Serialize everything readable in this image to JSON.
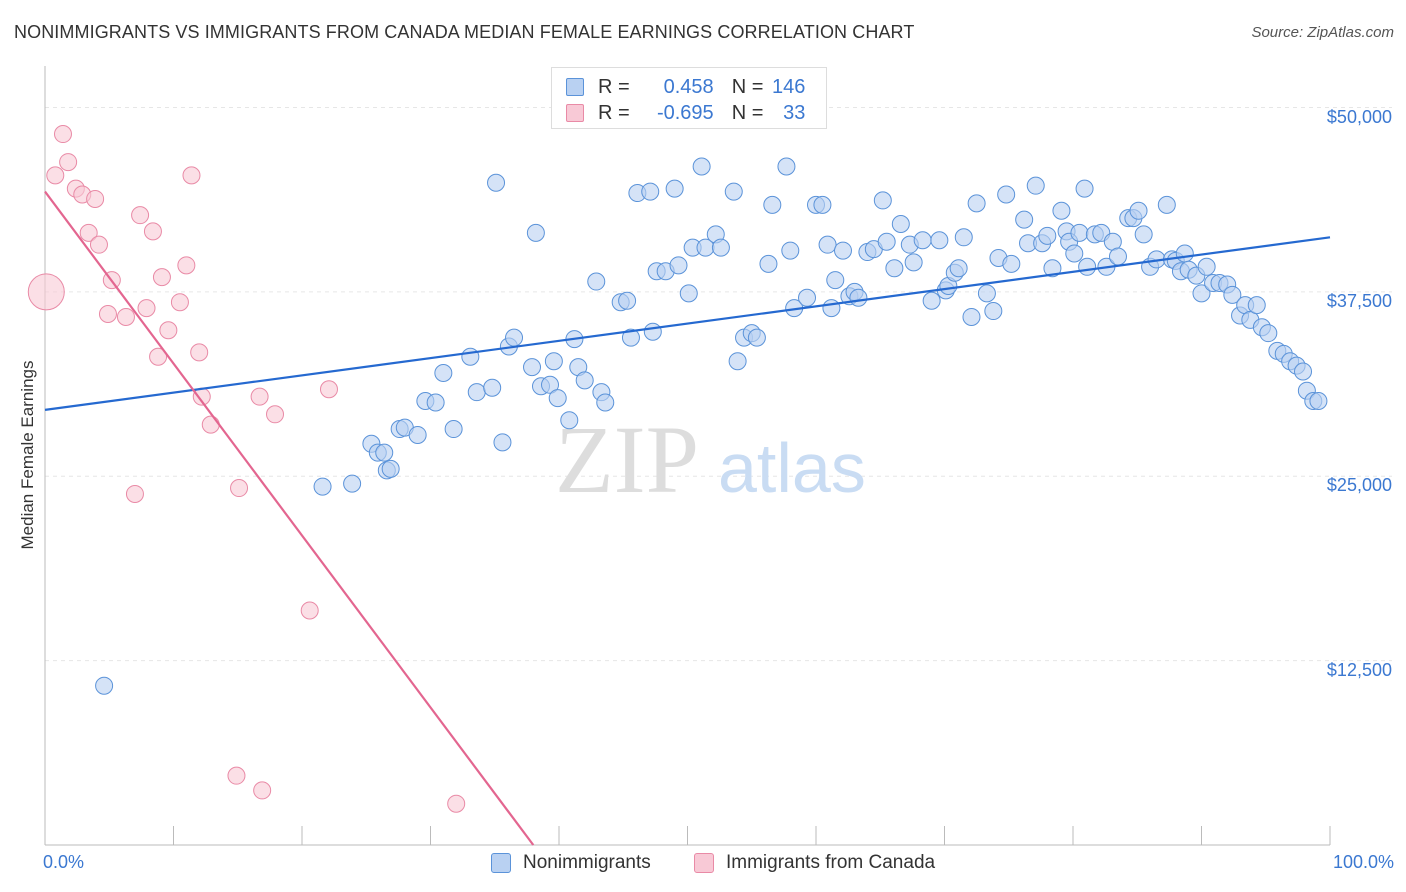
{
  "title": "NONIMMIGRANTS VS IMMIGRANTS FROM CANADA MEDIAN FEMALE EARNINGS CORRELATION CHART",
  "source": "Source: ZipAtlas.com",
  "watermark": {
    "zip": "ZIP",
    "atlas": "atlas"
  },
  "stats": {
    "r_label": "R =",
    "n_label": "N =",
    "blue": {
      "r": "0.458",
      "n": "146"
    },
    "pink": {
      "r": "-0.695",
      "n": "33"
    }
  },
  "colors": {
    "blue_fill": "#b9d1f2",
    "blue_stroke": "#5b93d9",
    "blue_line": "#2569d0",
    "pink_fill": "#f8c9d6",
    "pink_stroke": "#e98aa6",
    "pink_line": "#e36690",
    "tick_text": "#3b78d1",
    "grid": "#e6e6e6"
  },
  "chart_data": {
    "type": "scatter",
    "xlabel": "",
    "ylabel": "Median Female Earnings",
    "xlim": [
      0,
      100
    ],
    "ylim": [
      0,
      52000
    ],
    "x_tick_labels": {
      "left": "0.0%",
      "right": "100.0%"
    },
    "y_ticks": [
      {
        "value": 12500,
        "label": "$12,500"
      },
      {
        "value": 25000,
        "label": "$25,000"
      },
      {
        "value": 37500,
        "label": "$37,500"
      },
      {
        "value": 50000,
        "label": "$50,000"
      }
    ],
    "grid": true,
    "legend_position": "bottom",
    "series": [
      {
        "name": "Nonimmigrants",
        "color": "blue",
        "trend": [
          [
            0,
            29500
          ],
          [
            100,
            41200
          ]
        ],
        "points": [
          [
            4.6,
            10800
          ],
          [
            21.6,
            24300
          ],
          [
            23.9,
            24500
          ],
          [
            25.4,
            27200
          ],
          [
            25.9,
            26600
          ],
          [
            26.4,
            26600
          ],
          [
            26.6,
            25400
          ],
          [
            26.9,
            25500
          ],
          [
            27.6,
            28200
          ],
          [
            28.0,
            28300
          ],
          [
            29.0,
            27800
          ],
          [
            29.6,
            30100
          ],
          [
            30.4,
            30000
          ],
          [
            31.0,
            32000
          ],
          [
            31.8,
            28200
          ],
          [
            33.1,
            33100
          ],
          [
            33.6,
            30700
          ],
          [
            34.8,
            31000
          ],
          [
            35.1,
            44900
          ],
          [
            35.6,
            27300
          ],
          [
            36.1,
            33800
          ],
          [
            36.5,
            34400
          ],
          [
            37.9,
            32400
          ],
          [
            38.2,
            41500
          ],
          [
            38.6,
            31100
          ],
          [
            39.3,
            31200
          ],
          [
            39.6,
            32800
          ],
          [
            39.9,
            30300
          ],
          [
            40.8,
            28800
          ],
          [
            41.2,
            34300
          ],
          [
            41.5,
            32400
          ],
          [
            42.0,
            31500
          ],
          [
            42.9,
            38200
          ],
          [
            43.3,
            30700
          ],
          [
            43.6,
            30000
          ],
          [
            44.8,
            36800
          ],
          [
            45.3,
            36900
          ],
          [
            45.6,
            34400
          ],
          [
            46.1,
            44200
          ],
          [
            47.1,
            44300
          ],
          [
            47.3,
            34800
          ],
          [
            47.6,
            38900
          ],
          [
            48.3,
            38900
          ],
          [
            49.0,
            44500
          ],
          [
            49.3,
            39300
          ],
          [
            50.1,
            37400
          ],
          [
            50.4,
            40500
          ],
          [
            51.1,
            46000
          ],
          [
            51.4,
            40500
          ],
          [
            52.2,
            41400
          ],
          [
            52.6,
            40500
          ],
          [
            53.6,
            44300
          ],
          [
            53.9,
            32800
          ],
          [
            54.4,
            34400
          ],
          [
            55.0,
            34700
          ],
          [
            55.4,
            34400
          ],
          [
            56.3,
            39400
          ],
          [
            56.6,
            43400
          ],
          [
            57.7,
            46000
          ],
          [
            58.0,
            40300
          ],
          [
            58.3,
            36400
          ],
          [
            59.3,
            37100
          ],
          [
            60.0,
            43400
          ],
          [
            60.5,
            43400
          ],
          [
            60.9,
            40700
          ],
          [
            61.2,
            36400
          ],
          [
            61.5,
            38300
          ],
          [
            62.1,
            40300
          ],
          [
            62.6,
            37200
          ],
          [
            63.0,
            37500
          ],
          [
            63.3,
            37100
          ],
          [
            64.0,
            40200
          ],
          [
            64.5,
            40400
          ],
          [
            65.2,
            43700
          ],
          [
            65.5,
            40900
          ],
          [
            66.1,
            39100
          ],
          [
            66.6,
            42100
          ],
          [
            67.3,
            40700
          ],
          [
            67.6,
            39500
          ],
          [
            68.3,
            41000
          ],
          [
            69.0,
            36900
          ],
          [
            69.6,
            41000
          ],
          [
            70.1,
            37600
          ],
          [
            70.3,
            37900
          ],
          [
            70.8,
            38800
          ],
          [
            71.1,
            39100
          ],
          [
            71.5,
            41200
          ],
          [
            72.1,
            35800
          ],
          [
            72.5,
            43500
          ],
          [
            73.3,
            37400
          ],
          [
            73.8,
            36200
          ],
          [
            74.2,
            39800
          ],
          [
            74.8,
            44100
          ],
          [
            75.2,
            39400
          ],
          [
            76.2,
            42400
          ],
          [
            76.5,
            40800
          ],
          [
            77.1,
            44700
          ],
          [
            77.6,
            40800
          ],
          [
            78.0,
            41300
          ],
          [
            78.4,
            39100
          ],
          [
            79.1,
            43000
          ],
          [
            79.5,
            41600
          ],
          [
            79.7,
            40900
          ],
          [
            80.1,
            40100
          ],
          [
            80.5,
            41500
          ],
          [
            80.9,
            44500
          ],
          [
            81.1,
            39200
          ],
          [
            81.7,
            41400
          ],
          [
            82.2,
            41500
          ],
          [
            82.6,
            39200
          ],
          [
            83.1,
            40900
          ],
          [
            83.5,
            39900
          ],
          [
            84.3,
            42500
          ],
          [
            84.7,
            42500
          ],
          [
            85.1,
            43000
          ],
          [
            85.5,
            41400
          ],
          [
            86.0,
            39200
          ],
          [
            86.5,
            39700
          ],
          [
            87.3,
            43400
          ],
          [
            87.7,
            39700
          ],
          [
            88.0,
            39600
          ],
          [
            88.4,
            38900
          ],
          [
            88.7,
            40100
          ],
          [
            89.0,
            39000
          ],
          [
            89.6,
            38600
          ],
          [
            90.0,
            37400
          ],
          [
            90.4,
            39200
          ],
          [
            90.9,
            38100
          ],
          [
            91.4,
            38100
          ],
          [
            92.0,
            38000
          ],
          [
            92.4,
            37300
          ],
          [
            93.0,
            35900
          ],
          [
            93.4,
            36600
          ],
          [
            93.8,
            35600
          ],
          [
            94.3,
            36600
          ],
          [
            94.7,
            35100
          ],
          [
            95.2,
            34700
          ],
          [
            95.9,
            33500
          ],
          [
            96.4,
            33300
          ],
          [
            96.9,
            32800
          ],
          [
            97.4,
            32500
          ],
          [
            97.9,
            32100
          ],
          [
            98.2,
            30800
          ],
          [
            98.7,
            30100
          ],
          [
            99.1,
            30100
          ]
        ]
      },
      {
        "name": "Immigrants from Canada",
        "color": "pink",
        "trend": [
          [
            0,
            44300
          ],
          [
            38,
            0
          ]
        ],
        "points": [
          [
            0.1,
            37500,
            "large"
          ],
          [
            0.8,
            45400
          ],
          [
            1.4,
            48200
          ],
          [
            1.8,
            46300
          ],
          [
            2.4,
            44500
          ],
          [
            2.9,
            44100
          ],
          [
            3.4,
            41500
          ],
          [
            3.9,
            43800
          ],
          [
            4.2,
            40700
          ],
          [
            4.9,
            36000
          ],
          [
            5.2,
            38300
          ],
          [
            6.3,
            35800
          ],
          [
            7.0,
            23800
          ],
          [
            7.4,
            42700
          ],
          [
            7.9,
            36400
          ],
          [
            8.4,
            41600
          ],
          [
            8.8,
            33100
          ],
          [
            9.1,
            38500
          ],
          [
            9.6,
            34900
          ],
          [
            10.5,
            36800
          ],
          [
            11.0,
            39300
          ],
          [
            11.4,
            45400
          ],
          [
            12.0,
            33400
          ],
          [
            12.2,
            30400
          ],
          [
            12.9,
            28500
          ],
          [
            14.9,
            4700
          ],
          [
            15.1,
            24200
          ],
          [
            16.9,
            3700
          ],
          [
            16.7,
            30400
          ],
          [
            17.9,
            29200
          ],
          [
            20.6,
            15900
          ],
          [
            22.1,
            30900
          ],
          [
            32.0,
            2800
          ]
        ]
      }
    ]
  }
}
